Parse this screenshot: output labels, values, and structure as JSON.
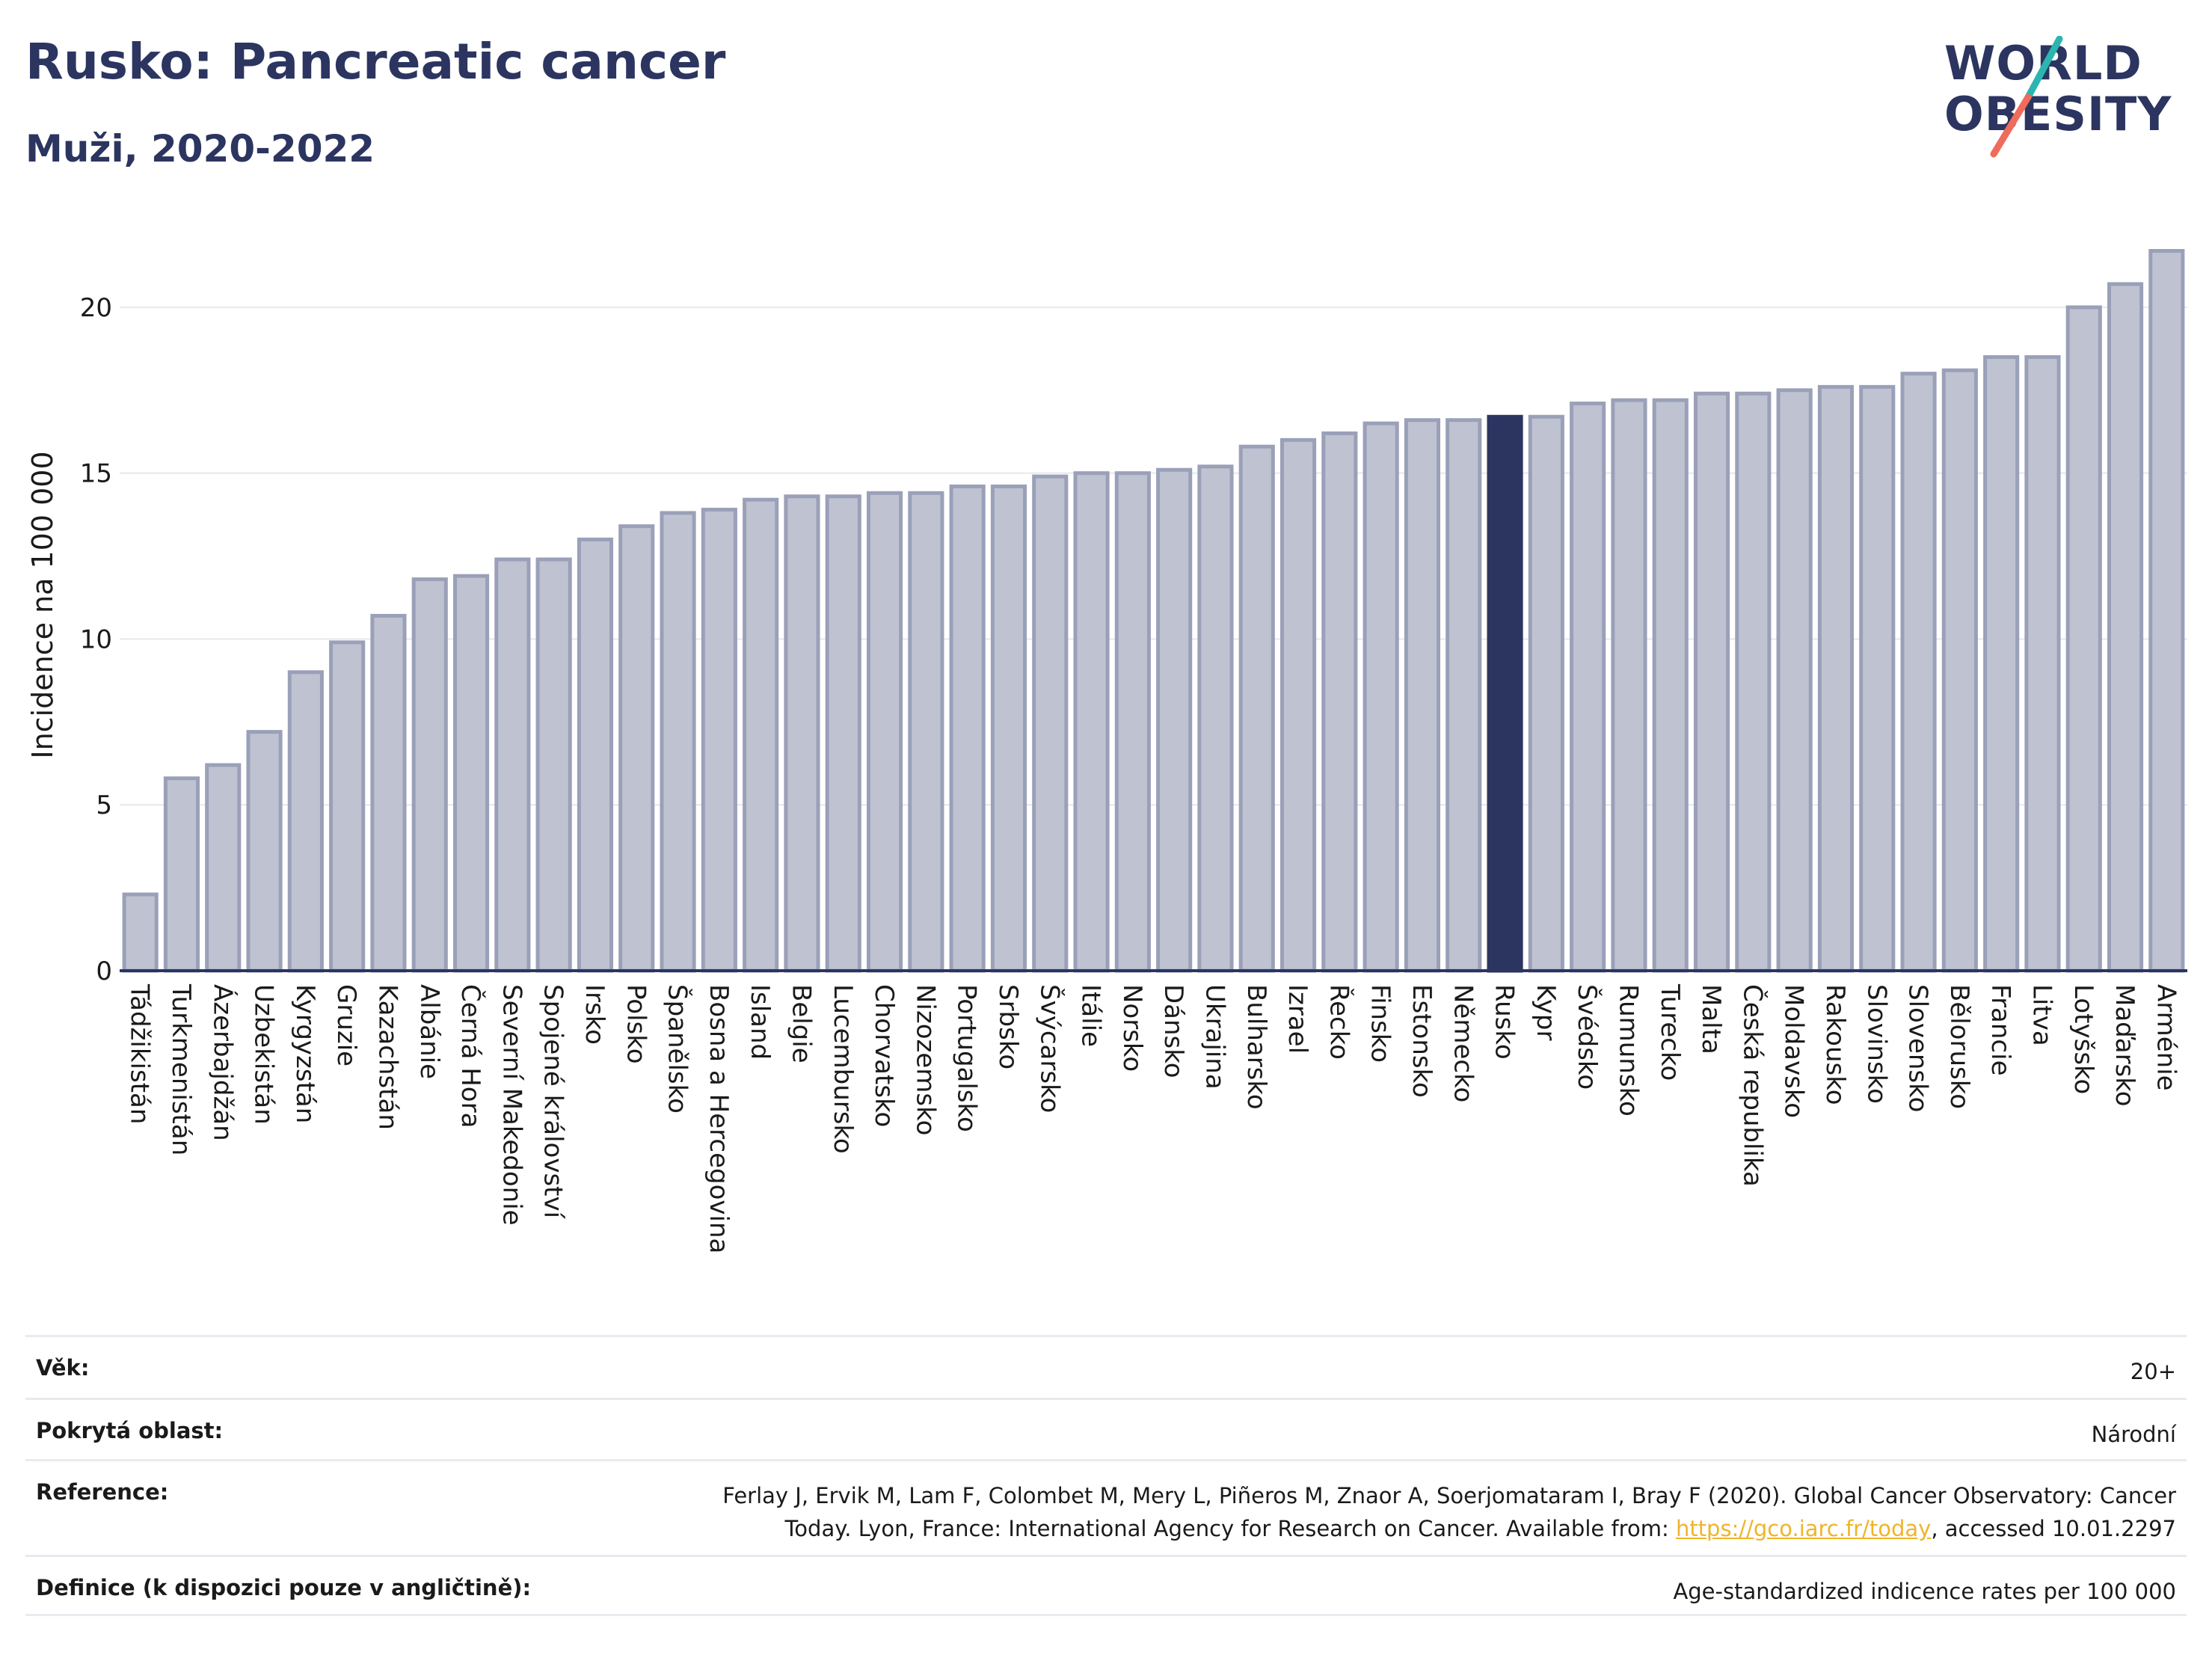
{
  "header": {
    "title": "Rusko: Pancreatic cancer",
    "subtitle": "Muži, 2020-2022"
  },
  "logo": {
    "line1": "WORLD",
    "line2": "OBESITY",
    "slash_color_top": "#2bb5b0",
    "slash_color_bottom": "#ef6b5b"
  },
  "colors": {
    "bar_fill": "#bfc3d1",
    "bar_stroke": "#9aa0b8",
    "highlight": "#2c3560",
    "grid": "#e6e8ee",
    "axis": "#2c3560"
  },
  "chart_data": {
    "type": "bar",
    "ylabel": "Incidence na 100 000",
    "ylim": [
      0,
      22.5
    ],
    "yticks": [
      0,
      5,
      10,
      15,
      20
    ],
    "highlight": "Rusko",
    "grid": true,
    "categories": [
      "Tádžikistán",
      "Turkmenistán",
      "Ázerbajdžán",
      "Uzbekistán",
      "Kyrgyzstán",
      "Gruzie",
      "Kazachstán",
      "Albánie",
      "Černá Hora",
      "Severní Makedonie",
      "Spojené království",
      "Irsko",
      "Polsko",
      "Španělsko",
      "Bosna a Hercegovina",
      "Island",
      "Belgie",
      "Lucembursko",
      "Chorvatsko",
      "Nizozemsko",
      "Portugalsko",
      "Srbsko",
      "Švýcarsko",
      "Itálie",
      "Norsko",
      "Dánsko",
      "Ukrajina",
      "Bulharsko",
      "Izrael",
      "Řecko",
      "Finsko",
      "Estonsko",
      "Německo",
      "Rusko",
      "Kypr",
      "Švédsko",
      "Rumunsko",
      "Turecko",
      "Malta",
      "Česká republika",
      "Moldavsko",
      "Rakousko",
      "Slovinsko",
      "Slovensko",
      "Bělorusko",
      "Francie",
      "Litva",
      "Lotyšsko",
      "Maďarsko",
      "Arménie"
    ],
    "values": [
      2.3,
      5.8,
      6.2,
      7.2,
      9.0,
      9.9,
      10.7,
      11.8,
      11.9,
      12.4,
      12.4,
      13.0,
      13.4,
      13.8,
      13.9,
      14.2,
      14.3,
      14.3,
      14.4,
      14.4,
      14.6,
      14.6,
      14.9,
      15.0,
      15.0,
      15.1,
      15.2,
      15.8,
      16.0,
      16.2,
      16.5,
      16.6,
      16.6,
      16.7,
      16.7,
      17.1,
      17.2,
      17.2,
      17.4,
      17.4,
      17.5,
      17.6,
      17.6,
      18.0,
      18.1,
      18.5,
      18.5,
      20.0,
      20.7,
      21.7
    ]
  },
  "meta": {
    "age_label": "Věk:",
    "age_value": "20+",
    "area_label": "Pokrytá oblast:",
    "area_value": "Národní",
    "ref_label": "Reference:",
    "ref_text_1": "Ferlay J, Ervik M, Lam F, Colombet M, Mery L, Piñeros M, Znaor A, Soerjomataram I, Bray F (2020). Global Cancer Observatory: Cancer",
    "ref_text_2": "Today. Lyon, France: International Agency for Research on Cancer. Available from:",
    "ref_link": "https://gco.iarc.fr/today",
    "ref_text_3": ", accessed 10.01.2297",
    "def_label": "Definice (k dispozici pouze v angličtině):",
    "def_value": "Age-standardized indicence rates per 100 000"
  }
}
